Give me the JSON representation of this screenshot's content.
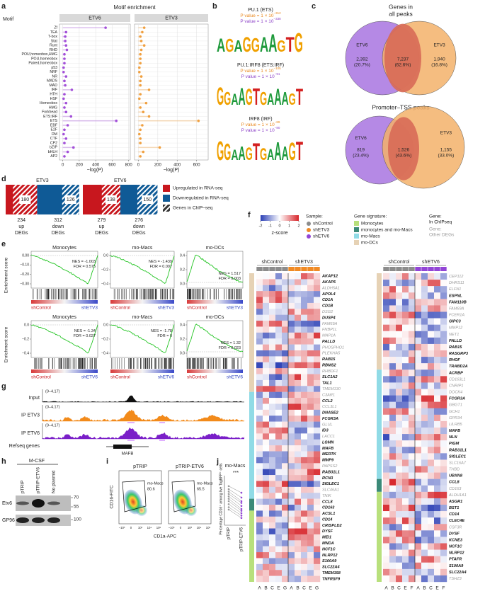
{
  "a": {
    "letter": "a",
    "title": "Motif enrichment",
    "y_label": "Motif",
    "x_label": "−log(P)",
    "motifs": [
      "Zf",
      "TEA",
      "T-box",
      "Stat",
      "Runt",
      "RHD",
      "POU,homeobox,HMG",
      "POU,homeobox",
      "Paired,homeobox",
      "p53",
      "NRF",
      "NR",
      "MADS",
      "MAD",
      "IRF",
      "HTH",
      "HSF",
      "Homeobox",
      "HMG",
      "Forkhead",
      "ETS:IRF",
      "ETS",
      "EBF",
      "E2F",
      "DM",
      "CTF",
      "CP2",
      "bZIP",
      "bHLH",
      "AP2"
    ],
    "facets": [
      {
        "name": "ETV6",
        "color": "#a24fd8",
        "xlim": [
          -40,
          820
        ],
        "xticks": [
          0,
          200,
          400,
          600,
          800
        ],
        "values": [
          520,
          40,
          30,
          30,
          40,
          50,
          20,
          20,
          20,
          10,
          10,
          40,
          20,
          30,
          110,
          20,
          10,
          40,
          20,
          40,
          100,
          650,
          60,
          20,
          10,
          40,
          20,
          130,
          60,
          20
        ]
      },
      {
        "name": "ETV3",
        "color": "#f0a040",
        "xlim": [
          -40,
          720
        ],
        "xticks": [
          0,
          200,
          400,
          600
        ],
        "values": [
          60,
          40,
          20,
          30,
          60,
          30,
          20,
          20,
          20,
          10,
          10,
          30,
          20,
          20,
          110,
          20,
          10,
          80,
          20,
          50,
          110,
          620,
          40,
          20,
          10,
          20,
          20,
          220,
          50,
          20
        ]
      }
    ]
  },
  "b": {
    "letter": "b",
    "nucleotide_colors": {
      "A": "#1f9a3c",
      "G": "#f0a000",
      "T": "#d42020",
      "C": "#2050c0"
    },
    "motifs": [
      {
        "title": "PU.1 (ETS)",
        "p_values": [
          {
            "text": "P value = 1 × 10",
            "exp": "−312",
            "color": "#e8861a"
          },
          {
            "text": "P value = 1 × 10",
            "exp": "−338",
            "color": "#8e44c8"
          }
        ],
        "logo": [
          "A",
          "G",
          "A",
          "G",
          "G",
          "A",
          "A",
          "G",
          "T",
          "G"
        ]
      },
      {
        "title": "PU.1:IRF8 (ETS:IRF)",
        "p_values": [
          {
            "text": "P value = 1 × 10",
            "exp": "−105",
            "color": "#e8861a"
          },
          {
            "text": "P value = 1 × 10",
            "exp": "−91",
            "color": "#8e44c8"
          }
        ],
        "logo": [
          "G",
          "G",
          "A",
          "A",
          "G",
          "T",
          "G",
          "A",
          "A",
          "A",
          "G",
          "T"
        ]
      },
      {
        "title": "IRF8 (IRF)",
        "p_values": [
          {
            "text": "P value = 1 × 10",
            "exp": "−89",
            "color": "#e8861a"
          },
          {
            "text": "P value = 1 × 10",
            "exp": "−80",
            "color": "#8e44c8"
          }
        ],
        "logo": [
          "G",
          "G",
          "A",
          "A",
          "G",
          "T",
          "G",
          "A",
          "A",
          "A",
          "G",
          "T"
        ]
      }
    ]
  },
  "c": {
    "letter": "c",
    "venns": [
      {
        "title": [
          "Genes in",
          "all peaks"
        ],
        "sets": [
          {
            "name": "ETV6",
            "color": "#a874e0"
          },
          {
            "name": "ETV3",
            "color": "#f3b26a"
          }
        ],
        "regions": [
          {
            "count": "2,392",
            "pct": "(20.7%)"
          },
          {
            "count": "7,237",
            "pct": "(62.6%)"
          },
          {
            "count": "1,940",
            "pct": "(16.8%)"
          }
        ]
      },
      {
        "title": [
          "Promoter–TSS peaks"
        ],
        "sets": [
          {
            "name": "ETV6",
            "color": "#a874e0"
          },
          {
            "name": "ETV3",
            "color": "#f3b26a"
          }
        ],
        "regions": [
          {
            "count": "819",
            "pct": "(23.4%)"
          },
          {
            "count": "1,526",
            "pct": "(43.6%)"
          },
          {
            "count": "1,155",
            "pct": "(33.0%)"
          }
        ]
      }
    ]
  },
  "d": {
    "letter": "d",
    "up_word": "up",
    "down_word": "down",
    "degs_word": "DEGs",
    "panels": [
      {
        "name": "ETV3",
        "up": 234,
        "up_chip": 180,
        "down": 312,
        "down_chip": 126
      },
      {
        "name": "ETV6",
        "up": 279,
        "up_chip": 138,
        "down": 276,
        "down_chip": 150
      }
    ],
    "legend": [
      {
        "label": "Upregulated in RNA-seq",
        "color": "#c8171e"
      },
      {
        "label": "Downregulated in RNA-seq",
        "color": "#0f5a96"
      },
      {
        "label": "Genes in ChIP–seq",
        "color": "#333333"
      }
    ]
  },
  "e": {
    "letter": "e",
    "y_label": "Enrichment score",
    "left_label": "shControl",
    "nes_label": "NES = ",
    "fdr_label": "FDR = ",
    "rows": [
      {
        "right_label": "shETV3",
        "plots": [
          {
            "title": "Monocytes",
            "nes": -1.003,
            "fdr": 0.575,
            "yticks": [
              "0.00",
              "−0.10",
              "−0.20",
              "−0.30"
            ]
          },
          {
            "title": "mo-Macs",
            "nes": -1.439,
            "fdr": 0.007,
            "yticks": [
              "0.0",
              "−0.2",
              "−0.4"
            ]
          },
          {
            "title": "mo-DCs",
            "nes": 1.517,
            "fdr": 0.003,
            "yticks": [
              "0.4",
              "0.2",
              "0.0"
            ]
          }
        ]
      },
      {
        "right_label": "shETV6",
        "plots": [
          {
            "title": "Monocytes",
            "nes": -1.34,
            "fdr": 0.027,
            "yticks": [
              "0.0",
              "−0.2",
              "−0.4"
            ]
          },
          {
            "title": "mo-Macs",
            "nes": -1.78,
            "fdr": 0,
            "yticks": [
              "0.0",
              "−0.2",
              "−0.4"
            ]
          },
          {
            "title": "mo-DCs",
            "nes": 1.32,
            "fdr": 0.023,
            "yticks": [
              "0.4",
              "0.2",
              "0.0"
            ]
          }
        ]
      }
    ]
  },
  "f": {
    "letter": "f",
    "scale": {
      "ticks": [
        -2,
        -1,
        0,
        1,
        2
      ],
      "label": "z-score"
    },
    "sample_title": "Sample:",
    "samples": [
      {
        "name": "shControl",
        "color": "#8c8c8c"
      },
      {
        "name": "shETV3",
        "color": "#f08a24"
      },
      {
        "name": "shETV6",
        "color": "#9245d6"
      }
    ],
    "signature_title": "Gene signature:",
    "signatures": [
      {
        "name": "Monocytes",
        "color": "#b8e07c"
      },
      {
        "name": "monocytes and mo-Macs",
        "color": "#3b8a78"
      },
      {
        "name": "mo-Macs",
        "color": "#90dbe6"
      },
      {
        "name": "mo-DCs",
        "color": "#e6d2b5"
      }
    ],
    "gene_legend": [
      {
        "title": "Gene:",
        "label": "In ChIPseq",
        "color": "#111111"
      },
      {
        "title": "Gene:",
        "label": "Other DEGs",
        "color": "#999999"
      }
    ],
    "heatmaps": [
      {
        "groups": [
          {
            "name": "shControl",
            "columns": [
              "A",
              "B",
              "C",
              "E",
              "G"
            ]
          },
          {
            "name": "shETV3",
            "columns": [
              "A",
              "B",
              "C",
              "E",
              "G"
            ]
          }
        ],
        "genes": [
          {
            "signature": "mo-DCs",
            "names": [
              "AKAP12",
              "AKAP5",
              "ALDH5A1",
              "APOL4",
              "CD1A",
              "CD1B",
              "DSG2",
              "DUSP4",
              "FAM69A",
              "FNBP1L",
              "MAP1A",
              "PALLD",
              "PHOSPHO1",
              "PLEKHA5",
              "RAB15",
              "RBMS2",
              "RHBDF1",
              "SLC1A2",
              "TAL1",
              "TMEM130"
            ],
            "chip": [
              true,
              true,
              false,
              true,
              true,
              true,
              false,
              true,
              false,
              false,
              false,
              true,
              false,
              false,
              true,
              true,
              false,
              true,
              true,
              false
            ]
          },
          {
            "signature": "mo-Macs",
            "names": [
              "C3AR1",
              "CCL2",
              "CCL3L1",
              "DNASE2",
              "FCGR3A",
              "GLUL",
              "ID3",
              "LACC1",
              "LGMN",
              "MAFB",
              "MERTK",
              "MMP9",
              "PAPSS2",
              "RAB31L1",
              "RCN3",
              "SIGLEC1",
              "SLC46A1",
              "TNIK"
            ],
            "chip": [
              false,
              true,
              false,
              true,
              true,
              false,
              true,
              false,
              true,
              true,
              true,
              true,
              false,
              true,
              true,
              true,
              false,
              false
            ]
          },
          {
            "signature": "monocytes and mo-Macs",
            "names": [
              "CCL8",
              "CD163"
            ],
            "chip": [
              true,
              true
            ]
          },
          {
            "signature": "Monocytes",
            "names": [
              "ACSL1",
              "CD14",
              "CRISPLD2",
              "DYSF",
              "MEI1",
              "MNDA",
              "NCF1C",
              "NLRP12",
              "S100A9",
              "SLC22A4",
              "TMEM158",
              "TNFRSF9"
            ],
            "chip": [
              true,
              true,
              true,
              true,
              true,
              true,
              true,
              true,
              true,
              true,
              true,
              true
            ]
          }
        ]
      },
      {
        "groups": [
          {
            "name": "shControl",
            "columns": [
              "A",
              "B",
              "C",
              "E",
              "F"
            ]
          },
          {
            "name": "shETV6",
            "columns": [
              "A",
              "B",
              "C",
              "E",
              "F"
            ]
          }
        ],
        "genes": [
          {
            "signature": "mo-DCs",
            "names": [
              "CEP112",
              "DHRS11",
              "ELFN1",
              "ESPNL",
              "FAM110B",
              "FAM69A",
              "FCER1A",
              "GIPC3",
              "MMP12",
              "NET1",
              "PALLD",
              "RAB15",
              "RASGRP3",
              "RHOF",
              "TRABD2A"
            ],
            "chip": [
              false,
              false,
              false,
              true,
              true,
              false,
              false,
              true,
              false,
              false,
              true,
              true,
              true,
              true,
              true
            ]
          },
          {
            "signature": "mo-Macs",
            "names": [
              "ACRBP",
              "CD163L1",
              "CNRIP1",
              "DOCK4",
              "FCGR3A",
              "GBGT1",
              "GCH1",
              "GPR34",
              "LILRB5",
              "MAFB",
              "NLN",
              "PIGM",
              "RAB31L1",
              "SIGLEC1",
              "SLC16A7",
              "THBD",
              "UBXN8"
            ],
            "chip": [
              true,
              false,
              false,
              false,
              true,
              false,
              false,
              false,
              false,
              true,
              true,
              true,
              true,
              true,
              false,
              false,
              true
            ]
          },
          {
            "signature": "monocytes and mo-Macs",
            "names": [
              "CCL8",
              "CD163"
            ],
            "chip": [
              true,
              false
            ]
          },
          {
            "signature": "Monocytes",
            "names": [
              "ALDH1A1",
              "ASGR1",
              "BST1",
              "CD14",
              "CLEC4E",
              "CSF3R",
              "DYSF",
              "KCNE3",
              "NCF1C",
              "NLRP12",
              "PTAFR",
              "S100A9",
              "SLC22A4",
              "TSHZ3"
            ],
            "chip": [
              false,
              true,
              true,
              true,
              true,
              false,
              true,
              true,
              true,
              true,
              true,
              true,
              true,
              false
            ]
          }
        ]
      }
    ]
  },
  "g": {
    "letter": "g",
    "tracks": [
      {
        "name": "Input",
        "range": "(0–4.17)",
        "color": "#111111"
      },
      {
        "name": "IP ETV3",
        "range": "(0–4.17)",
        "color": "#f28a1a"
      },
      {
        "name": "IP ETV6",
        "range": "(0–4.17)",
        "color": "#7a1fc8"
      }
    ],
    "genes_label": "Refseq genes",
    "gene": "MAFB"
  },
  "h": {
    "letter": "h",
    "condition": "M-CSF",
    "lanes": [
      "pTRIP",
      "pTRIP-ETV6",
      "No plasmid"
    ],
    "blots": [
      "Etv6",
      "GP96"
    ],
    "markers": [
      "70",
      "55",
      "100"
    ]
  },
  "i": {
    "letter": "i",
    "plots": [
      {
        "title": "pTRIP",
        "gate": "mo-Macs",
        "percent": "80.6"
      },
      {
        "title": "pTRIP-ETV6",
        "gate": "mo-Macs",
        "percent": "65.5"
      }
    ],
    "y_label": "CD16-FITC",
    "x_label": "CD1a-APC",
    "ticks": [
      "−10³",
      "0",
      "10³",
      "10⁴",
      "10⁵"
    ]
  },
  "j": {
    "letter": "j",
    "title": "mo-Macs",
    "significance": "***",
    "y_label": "Percentage CD16⁺ among live TagBFP⁺ cells",
    "groups": [
      "pTRIP",
      "pTRIP-ETV6"
    ],
    "ylim": [
      20,
      100
    ],
    "values": [
      [
        85,
        80,
        76,
        72,
        68,
        64,
        60,
        55,
        50,
        46
      ],
      [
        74,
        66,
        60,
        57,
        52,
        47,
        44,
        40,
        36,
        32
      ]
    ]
  }
}
